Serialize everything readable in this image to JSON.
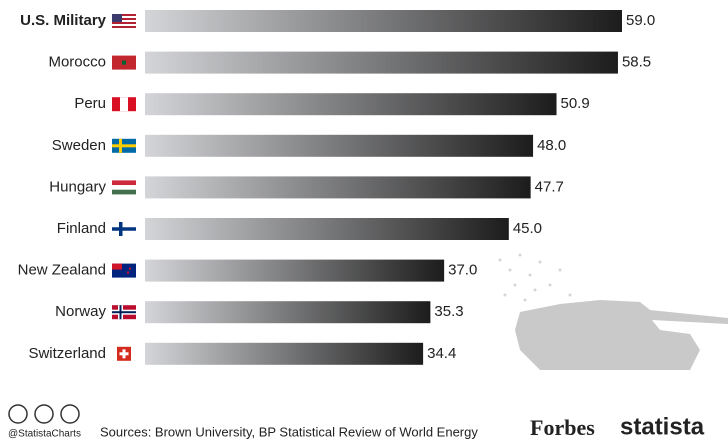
{
  "chart_data": {
    "type": "bar",
    "orientation": "horizontal",
    "categories": [
      "U.S. Military",
      "Morocco",
      "Peru",
      "Sweden",
      "Hungary",
      "Finland",
      "New Zealand",
      "Norway",
      "Switzerland"
    ],
    "values": [
      59.0,
      58.5,
      50.9,
      48.0,
      47.7,
      45.0,
      37.0,
      35.3,
      34.4
    ],
    "value_labels": [
      "59.0",
      "58.5",
      "50.9",
      "48.0",
      "47.7",
      "45.0",
      "37.0",
      "35.3",
      "34.4"
    ],
    "color_start": "#d4d5d8",
    "color_end": "#1c1c1c",
    "handle": "@StatistaCharts",
    "source": "Sources: Brown University, BP Statistical Review of World Energy",
    "publisher": "Forbes",
    "brand": "statista"
  }
}
